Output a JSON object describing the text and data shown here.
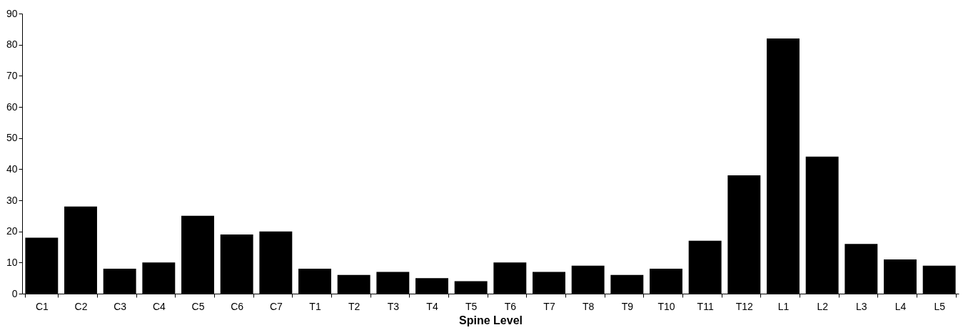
{
  "chart_data": {
    "type": "bar",
    "xlabel": "Spine Level",
    "categories": [
      "C1",
      "C2",
      "C3",
      "C4",
      "C5",
      "C6",
      "C7",
      "T1",
      "T2",
      "T3",
      "T4",
      "T5",
      "T6",
      "T7",
      "T8",
      "T9",
      "T10",
      "T11",
      "T12",
      "L1",
      "L2",
      "L3",
      "L4",
      "L5"
    ],
    "values": [
      18,
      28,
      8,
      10,
      25,
      19,
      20,
      8,
      6,
      7,
      5,
      4,
      10,
      7,
      9,
      6,
      8,
      17,
      38,
      82,
      44,
      16,
      11,
      9
    ],
    "color": "#000000",
    "ylim": [
      0,
      90
    ],
    "yticks": [
      0,
      10,
      20,
      30,
      40,
      50,
      60,
      70,
      80,
      90
    ],
    "grid": false
  }
}
